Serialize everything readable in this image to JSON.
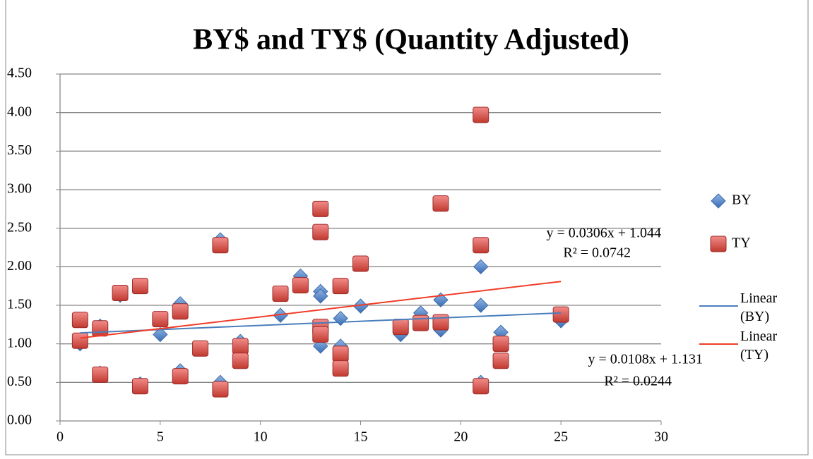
{
  "chart_data": {
    "type": "scatter",
    "title": "BY$ and TY$ (Quantity Adjusted)",
    "xlim": [
      0,
      30
    ],
    "xticks": [
      0,
      5,
      10,
      15,
      20,
      25,
      30
    ],
    "ylim": [
      0,
      4.5
    ],
    "yticks": [
      {
        "value": 0,
        "label": "0.00"
      },
      {
        "value": 0.5,
        "label": "0.50"
      },
      {
        "value": 1,
        "label": "1.00"
      },
      {
        "value": 1.5,
        "label": "1.50"
      },
      {
        "value": 2,
        "label": "2.00"
      },
      {
        "value": 2.5,
        "label": "2.50"
      },
      {
        "value": 3,
        "label": "3.00"
      },
      {
        "value": 3.5,
        "label": "3.50"
      },
      {
        "value": 4,
        "label": "4.00"
      },
      {
        "value": 4.5,
        "label": "4.50"
      }
    ],
    "grid": true,
    "legend": "right",
    "series": [
      {
        "name": "BY",
        "marker": "diamond",
        "color": "#4f81bd",
        "x": [
          1,
          2,
          2,
          3,
          4,
          5,
          6,
          6,
          8,
          8,
          9,
          11,
          12,
          13,
          13,
          13,
          14,
          14,
          15,
          17,
          18,
          19,
          19,
          21,
          21,
          21,
          22,
          25
        ],
        "values": [
          1.0,
          1.23,
          0.62,
          1.63,
          0.48,
          1.12,
          1.52,
          0.65,
          2.35,
          0.5,
          1.03,
          1.37,
          1.88,
          1.68,
          1.62,
          0.97,
          1.33,
          0.97,
          1.49,
          1.12,
          1.4,
          1.57,
          1.18,
          2.0,
          1.5,
          0.5,
          1.15,
          1.3
        ]
      },
      {
        "name": "TY",
        "marker": "square",
        "color": "#c0504d",
        "x": [
          1,
          1,
          2,
          2,
          3,
          4,
          4,
          5,
          6,
          6,
          7,
          8,
          8,
          9,
          9,
          11,
          12,
          13,
          13,
          13,
          13,
          14,
          14,
          14,
          15,
          17,
          18,
          19,
          19,
          21,
          21,
          21,
          22,
          22,
          25
        ],
        "values": [
          1.31,
          1.04,
          1.2,
          0.6,
          1.66,
          1.75,
          0.45,
          1.32,
          1.42,
          0.58,
          0.94,
          2.28,
          0.41,
          0.97,
          0.78,
          1.65,
          1.76,
          2.75,
          2.45,
          1.22,
          1.12,
          1.75,
          0.87,
          0.68,
          2.04,
          1.22,
          1.27,
          2.82,
          1.28,
          3.97,
          2.28,
          0.45,
          1.0,
          0.78,
          1.38
        ]
      }
    ],
    "trendlines": [
      {
        "name": "Linear (BY)",
        "color": "#4a7ebb",
        "slope": 0.0108,
        "intercept": 1.131,
        "x": [
          1,
          25
        ],
        "equation": "y = 0.0108x + 1.131",
        "r2": "R² = 0.0244"
      },
      {
        "name": "Linear (TY)",
        "color": "#f03c28",
        "slope": 0.0306,
        "intercept": 1.044,
        "x": [
          1,
          25
        ],
        "equation": "y = 0.0306x + 1.044",
        "r2": "R² = 0.0742"
      }
    ]
  }
}
